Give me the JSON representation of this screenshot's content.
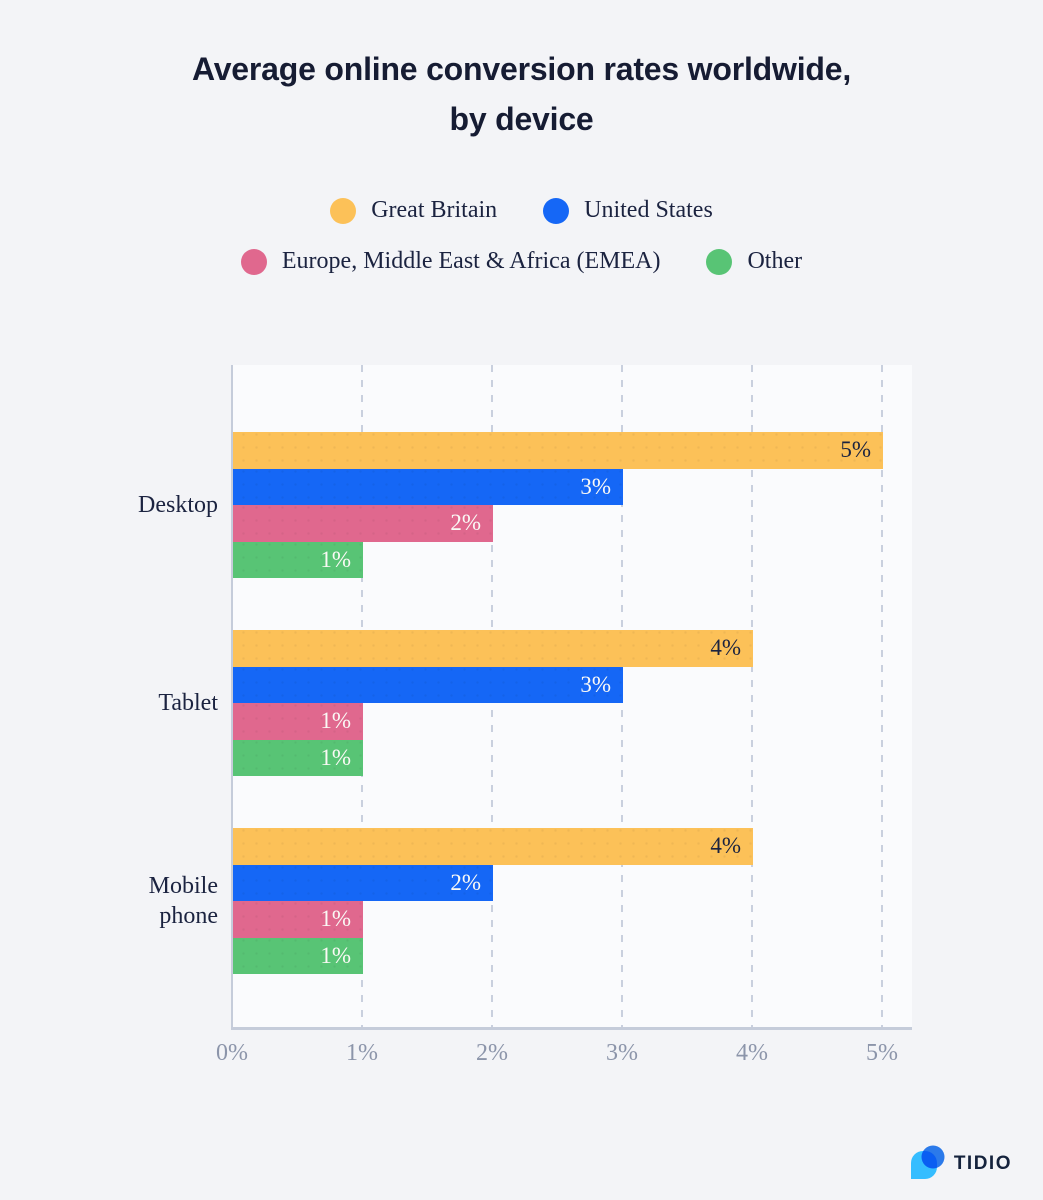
{
  "title": {
    "line1": "Average online conversion rates worldwide,",
    "line2": "by device"
  },
  "colors": {
    "background": "#F3F4F7",
    "plot_background": "#FAFBFD",
    "axis_line": "#C5CCDA",
    "gridline": "#C9D0DE",
    "text_dark": "#1B2340",
    "tick_label": "#8C95AA",
    "value_label_on_yellow": "#1B2340",
    "value_label_light": "#FAF9F5",
    "logo_cyan": "#35BDFF",
    "logo_blue": "#2D7FF2",
    "logo_text_color": "#15233D"
  },
  "legend": {
    "rows": [
      [
        {
          "label": "Great Britain",
          "color": "#FCC158"
        },
        {
          "label": "United States",
          "color": "#1567F6"
        }
      ],
      [
        {
          "label": "Europe, Middle East & Africa (EMEA)",
          "color": "#E0688E"
        },
        {
          "label": "Other",
          "color": "#58C475"
        }
      ]
    ]
  },
  "chart_data": {
    "type": "bar",
    "orientation": "horizontal",
    "title": "Average online conversion rates worldwide, by device",
    "categories": [
      "Desktop",
      "Tablet",
      "Mobile phone"
    ],
    "series": [
      {
        "name": "Great Britain",
        "color": "#FCC158",
        "values": [
          5,
          4,
          4
        ]
      },
      {
        "name": "United States",
        "color": "#1567F6",
        "values": [
          3,
          3,
          2
        ]
      },
      {
        "name": "Europe, Middle East & Africa (EMEA)",
        "color": "#E0688E",
        "values": [
          2,
          1,
          1
        ]
      },
      {
        "name": "Other",
        "color": "#58C475",
        "values": [
          1,
          1,
          1
        ]
      }
    ],
    "x_ticks": [
      "0%",
      "1%",
      "2%",
      "3%",
      "4%",
      "5%"
    ],
    "xlim": [
      0,
      5.2
    ],
    "value_suffix": "%",
    "grid": "vertical-dashed",
    "legend_position": "top",
    "value_labels": "inside-end"
  },
  "branding": {
    "logo_text": "TIDIO"
  }
}
